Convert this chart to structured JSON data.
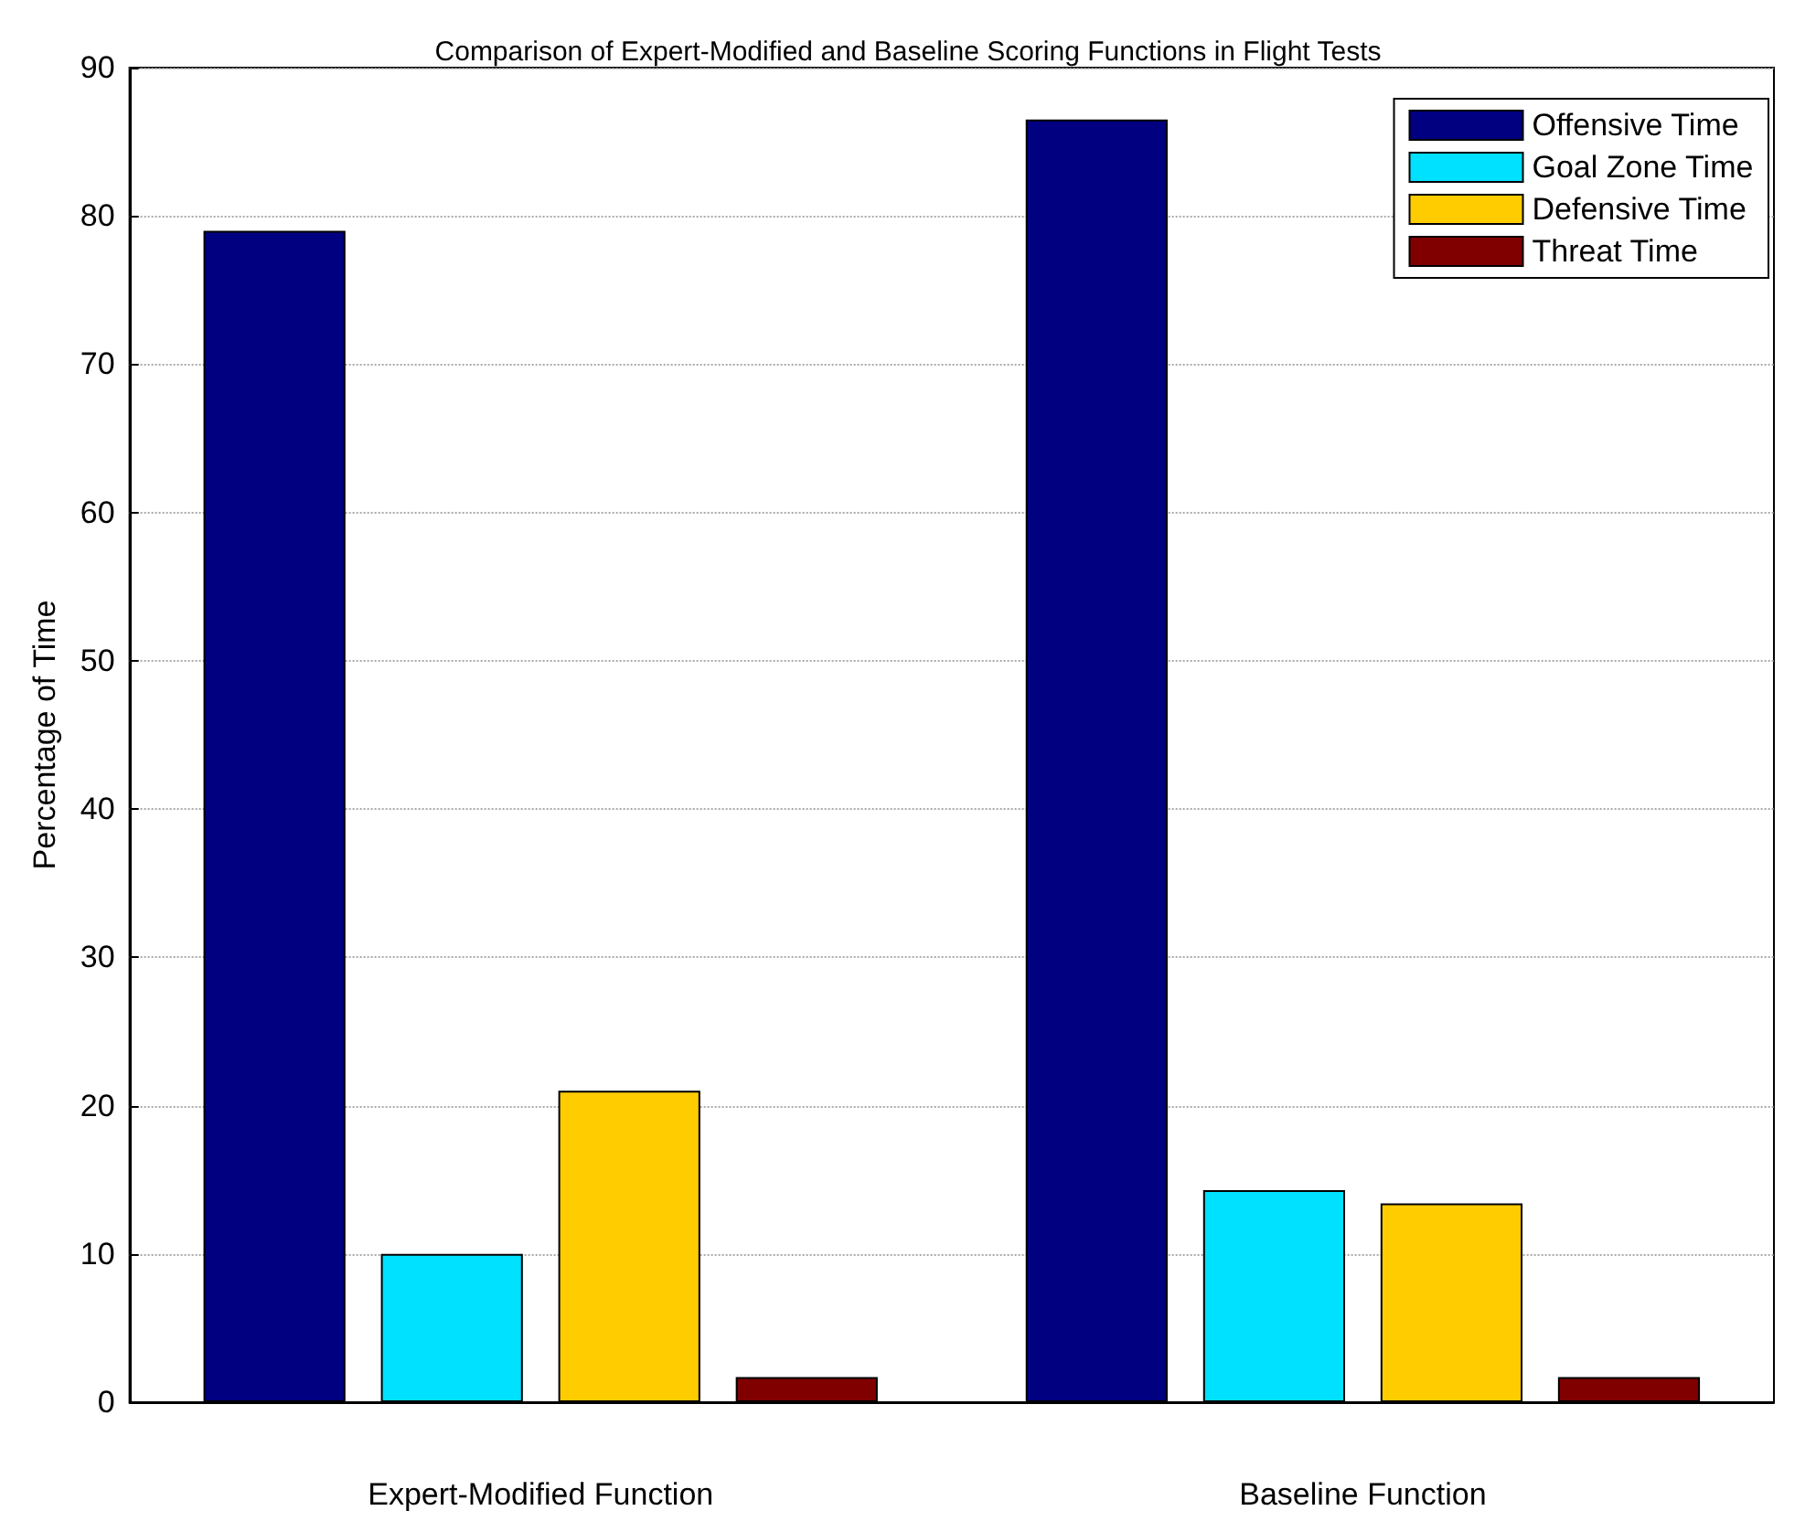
{
  "chart_data": {
    "type": "bar",
    "title": "Comparison of Expert-Modified and Baseline Scoring Functions in Flight Tests",
    "ylabel": "Percentage of Time",
    "categories": [
      "Expert-Modified Function",
      "Baseline Function"
    ],
    "series": [
      {
        "name": "Offensive Time",
        "color": "#000080",
        "values": [
          79,
          86.5
        ]
      },
      {
        "name": "Goal Zone Time",
        "color": "#00e0ff",
        "values": [
          10,
          14.3
        ]
      },
      {
        "name": "Defensive Time",
        "color": "#ffcc00",
        "values": [
          21,
          13.4
        ]
      },
      {
        "name": "Threat Time",
        "color": "#800000",
        "values": [
          1.7,
          1.7
        ]
      }
    ],
    "ylim": [
      0,
      90
    ],
    "yticks": [
      0,
      10,
      20,
      30,
      40,
      50,
      60,
      70,
      80,
      90
    ],
    "grid": "y",
    "legend": "top right"
  }
}
